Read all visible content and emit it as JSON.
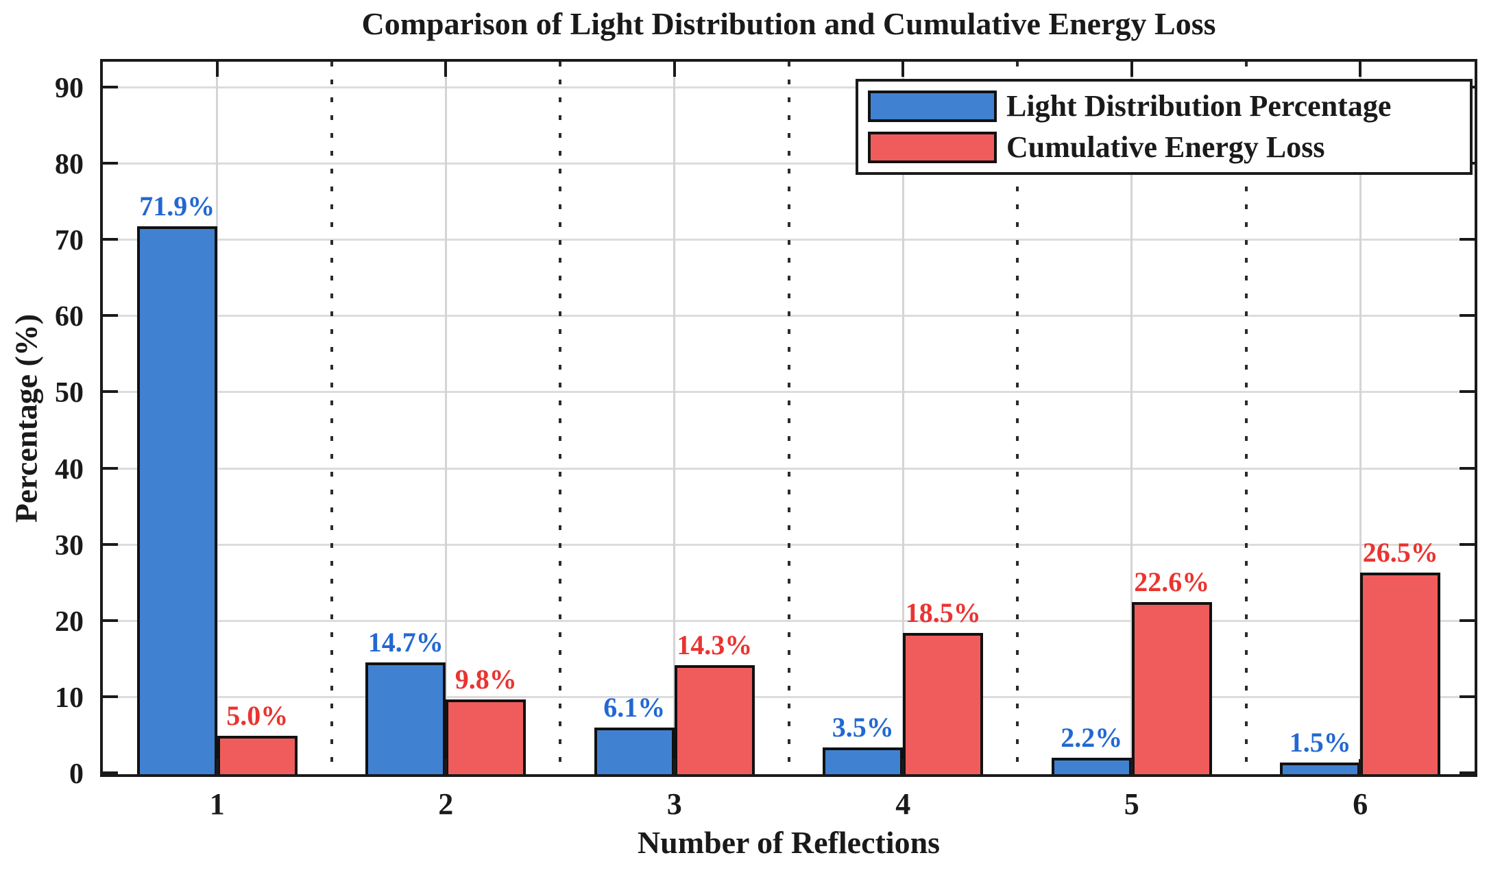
{
  "chart_data": {
    "type": "bar",
    "title": "Comparison of Light Distribution and Cumulative Energy Loss",
    "xlabel": "Number of Reflections",
    "ylabel": "Percentage (%)",
    "categories": [
      "1",
      "2",
      "3",
      "4",
      "5",
      "6"
    ],
    "series": [
      {
        "name": "Light Distribution Percentage",
        "color": "#4181d1",
        "label_color": "#2268d2",
        "values": [
          71.9,
          14.7,
          6.1,
          3.5,
          2.2,
          1.5
        ],
        "labels": [
          "71.9%",
          "14.7%",
          "6.1%",
          "3.5%",
          "2.2%",
          "1.5%"
        ]
      },
      {
        "name": "Cumulative Energy Loss",
        "color": "#f05c5c",
        "label_color": "#ea3431",
        "values": [
          5.0,
          9.8,
          14.3,
          18.5,
          22.6,
          26.5
        ],
        "labels": [
          "5.0%",
          "9.8%",
          "14.3%",
          "18.5%",
          "22.6%",
          "26.5%"
        ]
      }
    ],
    "ylim": [
      0,
      93.5
    ],
    "yticks": [
      0,
      10,
      20,
      30,
      40,
      50,
      60,
      70,
      80,
      90
    ],
    "grid": {
      "horizontal": true,
      "vertical_center": true,
      "group_separators": "dotted"
    },
    "legend_position": "top-right",
    "axis_color": "#1a1a1a",
    "gridline_color": "#dcdcdc"
  }
}
